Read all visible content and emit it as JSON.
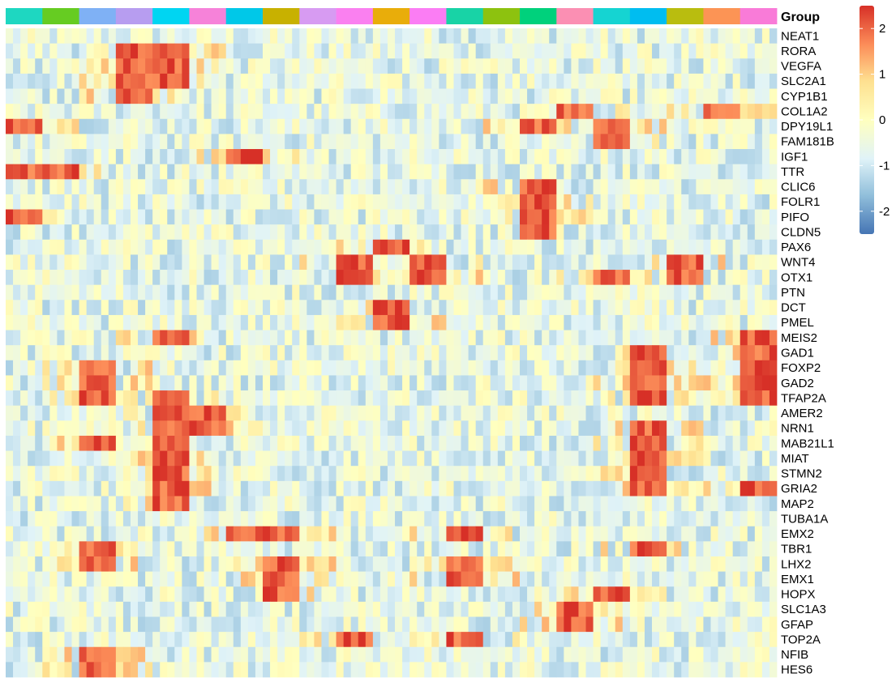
{
  "chart_data": {
    "type": "heatmap",
    "group_title": "Group",
    "group_colors": [
      "#1ed7c1",
      "#66cc22",
      "#7fb1f5",
      "#b79df0",
      "#00d5f2",
      "#f682d9",
      "#00c8e8",
      "#c8b100",
      "#d79bf2",
      "#fa80f0",
      "#e9ad0a",
      "#fb7df4",
      "#18d3a6",
      "#8dc20f",
      "#00d17c",
      "#fb8fb3",
      "#15d4d2",
      "#00bdf0",
      "#b9bd0f",
      "#fc9455",
      "#f97bd8"
    ],
    "rows": [
      "NEAT1",
      "RORA",
      "VEGFA",
      "SLC2A1",
      "CYP1B1",
      "COL1A2",
      "DPY19L1",
      "FAM181B",
      "IGF1",
      "TTR",
      "CLIC6",
      "FOLR1",
      "PIFO",
      "CLDN5",
      "PAX6",
      "WNT4",
      "OTX1",
      "PTN",
      "DCT",
      "PMEL",
      "MEIS2",
      "GAD1",
      "FOXP2",
      "GAD2",
      "TFAP2A",
      "AMER2",
      "NRN1",
      "MAB21L1",
      "MIAT",
      "STMN2",
      "GRIA2",
      "MAP2",
      "TUBA1A",
      "EMX2",
      "TBR1",
      "LHX2",
      "EMX1",
      "HOPX",
      "SLC1A3",
      "GFAP",
      "TOP2A",
      "NFIB",
      "HES6"
    ],
    "high_clusters": [
      [
        1,
        [
          3,
          4
        ]
      ],
      [
        2,
        [
          3,
          4
        ]
      ],
      [
        3,
        [
          3,
          4
        ]
      ],
      [
        4,
        [
          3
        ]
      ],
      [
        5,
        [
          15,
          19
        ]
      ],
      [
        6,
        [
          0,
          14,
          16
        ]
      ],
      [
        7,
        [
          16
        ]
      ],
      [
        8,
        [
          6
        ]
      ],
      [
        9,
        [
          0,
          1
        ]
      ],
      [
        10,
        [
          14
        ]
      ],
      [
        11,
        [
          14
        ]
      ],
      [
        12,
        [
          0,
          14
        ]
      ],
      [
        13,
        [
          14
        ]
      ],
      [
        14,
        [
          10
        ]
      ],
      [
        15,
        [
          9,
          11,
          18
        ]
      ],
      [
        16,
        [
          9,
          11,
          16,
          18
        ]
      ],
      [
        18,
        [
          10
        ]
      ],
      [
        19,
        [
          10
        ]
      ],
      [
        20,
        [
          4,
          20
        ]
      ],
      [
        21,
        [
          17,
          20
        ]
      ],
      [
        22,
        [
          2,
          17,
          20
        ]
      ],
      [
        23,
        [
          2,
          17,
          20
        ]
      ],
      [
        24,
        [
          2,
          4,
          17,
          20
        ]
      ],
      [
        25,
        [
          4,
          5
        ]
      ],
      [
        26,
        [
          4,
          5,
          17
        ]
      ],
      [
        27,
        [
          2,
          4,
          17
        ]
      ],
      [
        28,
        [
          4,
          17
        ]
      ],
      [
        29,
        [
          4,
          17
        ]
      ],
      [
        30,
        [
          4,
          17,
          20
        ]
      ],
      [
        31,
        [
          4
        ]
      ],
      [
        33,
        [
          6,
          7,
          12
        ]
      ],
      [
        34,
        [
          2,
          17
        ]
      ],
      [
        35,
        [
          2,
          7,
          12
        ]
      ],
      [
        36,
        [
          7,
          12
        ]
      ],
      [
        37,
        [
          7,
          16
        ]
      ],
      [
        38,
        [
          15
        ]
      ],
      [
        39,
        [
          15
        ]
      ],
      [
        40,
        [
          9,
          12
        ]
      ],
      [
        41,
        [
          2
        ]
      ],
      [
        42,
        [
          2
        ]
      ]
    ],
    "color_scale": {
      "min": -2.5,
      "max": 2.5,
      "colors": [
        "#4575b4",
        "#91bfdb",
        "#e0f3f8",
        "#ffffbf",
        "#fee090",
        "#fc8d59",
        "#d73027"
      ],
      "ticks": [
        2,
        1,
        0,
        -1,
        -2
      ],
      "tick_labels": [
        "2",
        "1",
        "0",
        "-1",
        "-2"
      ]
    }
  }
}
